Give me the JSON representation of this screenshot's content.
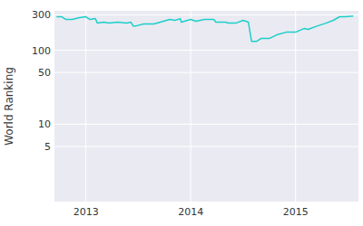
{
  "chart_data": {
    "type": "line",
    "y_label": "World Ranking",
    "x": [
      2012.72,
      2012.77,
      2012.81,
      2012.87,
      2012.94,
      2013.0,
      2013.04,
      2013.09,
      2013.11,
      2013.17,
      2013.22,
      2013.3,
      2013.39,
      2013.43,
      2013.45,
      2013.48,
      2013.55,
      2013.65,
      2013.74,
      2013.8,
      2013.85,
      2013.9,
      2013.91,
      2014.0,
      2014.05,
      2014.13,
      2014.22,
      2014.24,
      2014.33,
      2014.36,
      2014.43,
      2014.5,
      2014.55,
      2014.58,
      2014.63,
      2014.67,
      2014.75,
      2014.82,
      2014.91,
      2015.0,
      2015.08,
      2015.12,
      2015.21,
      2015.29,
      2015.36,
      2015.42,
      2015.47,
      2015.55
    ],
    "values": [
      283,
      283,
      260,
      260,
      275,
      283,
      260,
      267,
      232,
      239,
      232,
      239,
      232,
      239,
      213,
      213,
      226,
      226,
      246,
      260,
      253,
      267,
      239,
      260,
      246,
      260,
      260,
      239,
      239,
      232,
      232,
      253,
      239,
      132,
      132,
      144,
      144,
      161,
      175,
      175,
      196,
      191,
      213,
      232,
      253,
      283,
      283,
      290
    ],
    "color": "#1ccfc9",
    "xlim": [
      2012.7,
      2015.6
    ],
    "xticks": [
      2013,
      2014,
      2015
    ],
    "ylim": [
      0.9,
      340
    ],
    "yticks": [
      5,
      10,
      50,
      100,
      300
    ],
    "log": "y",
    "grid": true
  }
}
